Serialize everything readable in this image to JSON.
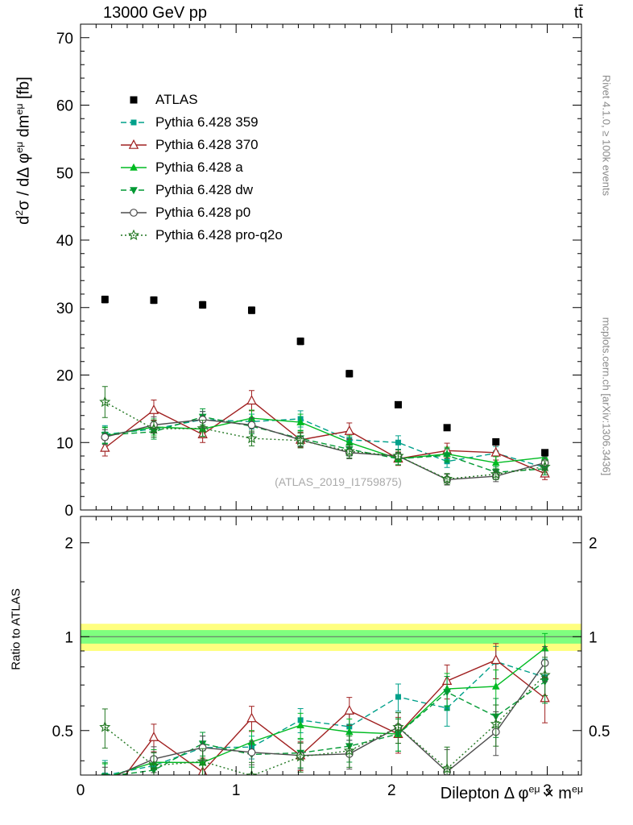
{
  "header": {
    "title_left": "13000 GeV pp",
    "title_right": "tt̄"
  },
  "side_notes": {
    "right_top": "Rivet 4.1.0, ≥ 100k events",
    "right_bottom": "mcplots.cern.ch [arXiv:1306.3436]"
  },
  "watermark": "(ATLAS_2019_I1759875)",
  "chart_data": {
    "type": "scatter",
    "title": "",
    "xlabel": "Dilepton Δ φ^{eμ} × m^{eμ}",
    "ylabel": "d^{2}σ / dΔ φ^{eμ} dm^{eμ} [fb]",
    "ratio_label": "Ratio to ATLAS",
    "xlim": [
      0,
      3.22
    ],
    "ylim": [
      0,
      72
    ],
    "ratio_ylim": [
      0.36,
      2.43
    ],
    "ratio_scale": "log",
    "x_ticks": [
      0,
      1,
      2,
      3
    ],
    "y_ticks": [
      0,
      10,
      20,
      30,
      40,
      50,
      60,
      70
    ],
    "ratio_ticks": [
      0.5,
      1,
      2
    ],
    "x_minor_step": 0.1,
    "y_minor_step": 2,
    "ratio_minor_ticks": [
      0.4,
      0.6,
      0.7,
      0.8,
      0.9,
      1.5
    ],
    "band_outer": {
      "lo": 0.9,
      "hi": 1.1,
      "color": "#ffff7f"
    },
    "band_inner": {
      "lo": 0.95,
      "hi": 1.05,
      "color": "#7fff7f"
    },
    "grid": false,
    "legend_position": "upper-left",
    "x": [
      0.157,
      0.471,
      0.785,
      1.1,
      1.414,
      1.728,
      2.042,
      2.356,
      2.67,
      2.985
    ],
    "reference": {
      "name": "ATLAS",
      "color": "#000000",
      "marker": "square",
      "line": "none",
      "values": [
        31.2,
        31.1,
        30.4,
        29.6,
        25.0,
        20.2,
        15.6,
        12.2,
        10.1,
        8.5
      ],
      "errs": [
        0.5,
        0.5,
        0.5,
        0.5,
        0.5,
        0.5,
        0.4,
        0.4,
        0.4,
        0.4
      ]
    },
    "series": [
      {
        "name": "Pythia 6.428 359",
        "color": "#00a08a",
        "marker": "square-small",
        "line": "dashed",
        "values": [
          11.2,
          12.0,
          13.4,
          13.1,
          13.5,
          10.4,
          10.0,
          7.2,
          8.4,
          6.3
        ],
        "errs": [
          1.3,
          1.2,
          1.2,
          1.1,
          1.2,
          1.0,
          1.0,
          0.9,
          1.0,
          0.9
        ]
      },
      {
        "name": "Pythia 6.428 370",
        "color": "#a02020",
        "marker": "triangle-open",
        "line": "solid",
        "values": [
          9.2,
          14.8,
          11.2,
          16.2,
          10.4,
          11.7,
          7.6,
          8.8,
          8.5,
          5.4
        ],
        "errs": [
          1.2,
          1.5,
          1.2,
          1.5,
          1.1,
          1.2,
          1.0,
          1.1,
          1.1,
          0.9
        ]
      },
      {
        "name": "Pythia 6.428 a",
        "color": "#00bb22",
        "marker": "triangle",
        "line": "solid",
        "values": [
          11.0,
          12.3,
          12.0,
          13.6,
          13.0,
          10.0,
          7.6,
          8.3,
          7.0,
          7.8
        ],
        "errs": [
          1.2,
          1.2,
          1.1,
          1.2,
          1.2,
          1.0,
          0.9,
          1.0,
          0.9,
          0.9
        ]
      },
      {
        "name": "Pythia 6.428 dw",
        "color": "#009933",
        "marker": "triangle-down",
        "line": "dashed",
        "values": [
          11.1,
          11.6,
          13.8,
          12.4,
          10.6,
          9.0,
          7.6,
          8.1,
          5.6,
          6.1
        ],
        "errs": [
          1.2,
          1.1,
          1.2,
          1.1,
          1.1,
          1.0,
          0.9,
          1.0,
          0.8,
          0.9
        ]
      },
      {
        "name": "Pythia 6.428 p0",
        "color": "#4d4d4d",
        "marker": "circle-open",
        "line": "solid",
        "values": [
          10.8,
          12.6,
          13.4,
          12.6,
          10.4,
          8.5,
          8.0,
          4.5,
          5.0,
          7.0
        ],
        "errs": [
          1.1,
          1.2,
          1.2,
          1.1,
          1.0,
          0.9,
          0.9,
          0.8,
          0.8,
          0.9
        ]
      },
      {
        "name": "Pythia 6.428 pro-q2o",
        "color": "#227722",
        "marker": "star-open",
        "line": "dotted",
        "values": [
          16.0,
          12.0,
          12.1,
          10.6,
          10.3,
          8.7,
          8.0,
          4.6,
          5.3,
          6.4
        ],
        "errs": [
          2.3,
          1.2,
          1.2,
          1.1,
          1.1,
          1.0,
          0.9,
          0.8,
          0.8,
          0.9
        ]
      }
    ]
  }
}
